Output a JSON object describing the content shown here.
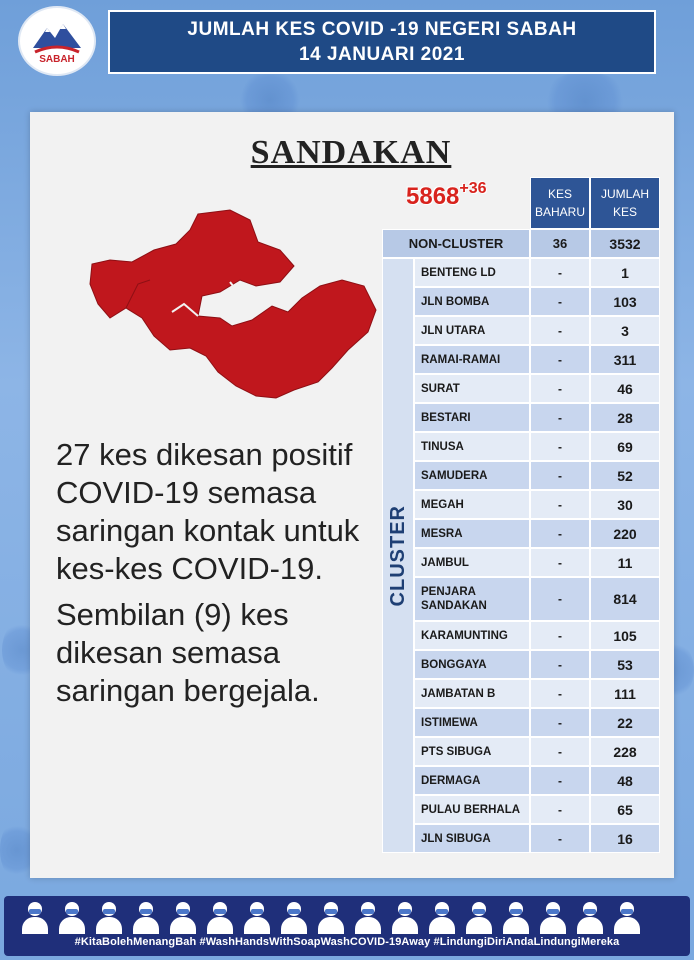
{
  "header": {
    "logo_text": "SABAH",
    "title_line1": "JUMLAH KES COVID -19 NEGERI SABAH",
    "title_line2": "14 JANUARI 2021"
  },
  "district": "SANDAKAN",
  "total": {
    "cumulative": "5868",
    "new": "+36"
  },
  "description": [
    "27 kes dikesan positif COVID-19 semasa saringan kontak untuk kes-kes COVID-19.",
    "Sembilan (9) kes dikesan semasa saringan bergejala."
  ],
  "table": {
    "headers": {
      "new_cases": "KES BAHARU",
      "total_cases": "JUMLAH KES"
    },
    "non_cluster": {
      "label": "NON-CLUSTER",
      "new": "36",
      "total": "3532"
    },
    "cluster_label": "CLUSTER",
    "clusters": [
      {
        "name": "BENTENG LD",
        "new": "-",
        "total": "1"
      },
      {
        "name": "JLN BOMBA",
        "new": "-",
        "total": "103"
      },
      {
        "name": "JLN UTARA",
        "new": "-",
        "total": "3"
      },
      {
        "name": "RAMAI-RAMAI",
        "new": "-",
        "total": "311"
      },
      {
        "name": "SURAT",
        "new": "-",
        "total": "46"
      },
      {
        "name": "BESTARI",
        "new": "-",
        "total": "28"
      },
      {
        "name": "TINUSA",
        "new": "-",
        "total": "69"
      },
      {
        "name": "SAMUDERA",
        "new": "-",
        "total": "52"
      },
      {
        "name": "MEGAH",
        "new": "-",
        "total": "30"
      },
      {
        "name": "MESRA",
        "new": "-",
        "total": "220"
      },
      {
        "name": "JAMBUL",
        "new": "-",
        "total": "11"
      },
      {
        "name": "PENJARA SANDAKAN",
        "new": "-",
        "total": "814"
      },
      {
        "name": "KARAMUNTING",
        "new": "-",
        "total": "105"
      },
      {
        "name": "BONGGAYA",
        "new": "-",
        "total": "53"
      },
      {
        "name": "JAMBATAN B",
        "new": "-",
        "total": "111"
      },
      {
        "name": "ISTIMEWA",
        "new": "-",
        "total": "22"
      },
      {
        "name": "PTS SIBUGA",
        "new": "-",
        "total": "228"
      },
      {
        "name": "DERMAGA",
        "new": "-",
        "total": "48"
      },
      {
        "name": "PULAU BERHALA",
        "new": "-",
        "total": "65"
      },
      {
        "name": "JLN SIBUGA",
        "new": "-",
        "total": "16"
      }
    ]
  },
  "footer": {
    "hashtags": "#KitaBolehMenangBah #WashHandsWithSoapWashCOVID-19Away #LindungiDiriAndaLindungiMereka"
  },
  "colors": {
    "map_fill": "#c0171d",
    "header_bg": "#1f4a86",
    "total_red": "#d8231d",
    "table_head": "#2e5596"
  }
}
